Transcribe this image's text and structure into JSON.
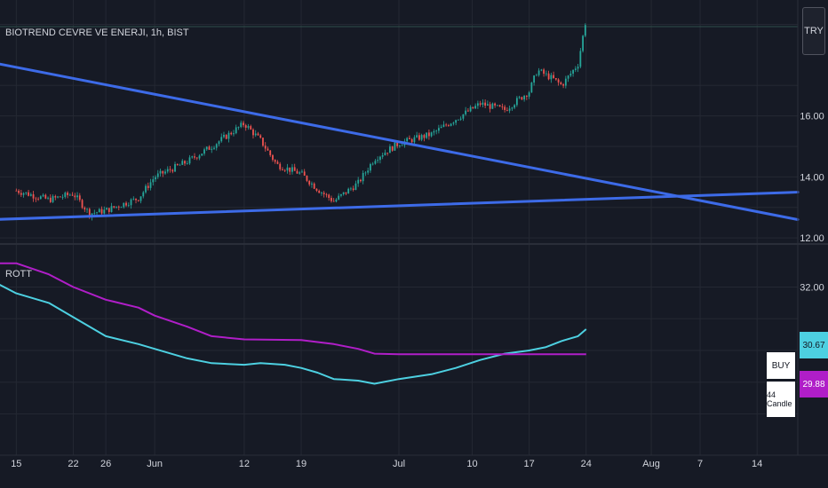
{
  "header": {
    "symbol_title": "BIOTREND CEVRE VE ENERJI, 1h, BIST",
    "currency": "TRY"
  },
  "indicator": {
    "name": "ROTT",
    "signal": "BUY",
    "candle_count": "44 Candle"
  },
  "colors": {
    "background": "#161a25",
    "grid": "#242833",
    "up_candle": "#26a69a",
    "down_candle": "#ef5350",
    "trendline": "#3d6be8",
    "indicator_cyan": "#4dd0e1",
    "indicator_magenta": "#b01ec8"
  },
  "chart_data": [
    {
      "type": "candlestick",
      "title": "BIOTREND CEVRE VE ENERJI, 1h, BIST",
      "price_axis": {
        "ticks": [
          "12.00",
          "14.00",
          "16.00"
        ],
        "range": [
          11.8,
          19.8
        ]
      },
      "x_ticks": [
        "15",
        "22",
        "26",
        "Jun",
        "12",
        "19",
        "Jul",
        "10",
        "17",
        "24",
        "Aug",
        "7",
        "14"
      ],
      "price_path": [
        {
          "date": "May 15",
          "price": 13.55
        },
        {
          "date": "May 19",
          "price": 13.25
        },
        {
          "date": "May 22",
          "price": 13.45
        },
        {
          "date": "May 24",
          "price": 12.8
        },
        {
          "date": "May 26",
          "price": 12.9
        },
        {
          "date": "May 30",
          "price": 13.3
        },
        {
          "date": "Jun 1",
          "price": 14.0
        },
        {
          "date": "Jun 5",
          "price": 14.5
        },
        {
          "date": "Jun 8",
          "price": 15.0
        },
        {
          "date": "Jun 12",
          "price": 15.75
        },
        {
          "date": "Jun 14",
          "price": 15.2
        },
        {
          "date": "Jun 16",
          "price": 14.4
        },
        {
          "date": "Jun 19",
          "price": 14.1
        },
        {
          "date": "Jun 21",
          "price": 13.6
        },
        {
          "date": "Jun 23",
          "price": 13.2
        },
        {
          "date": "Jun 26",
          "price": 13.8
        },
        {
          "date": "Jun 28",
          "price": 14.6
        },
        {
          "date": "Jul 1",
          "price": 15.1
        },
        {
          "date": "Jul 5",
          "price": 15.4
        },
        {
          "date": "Jul 8",
          "price": 15.9
        },
        {
          "date": "Jul 11",
          "price": 16.4
        },
        {
          "date": "Jul 14",
          "price": 16.2
        },
        {
          "date": "Jul 17",
          "price": 16.8
        },
        {
          "date": "Jul 18",
          "price": 17.5
        },
        {
          "date": "Jul 20",
          "price": 17.2
        },
        {
          "date": "Jul 21",
          "price": 17.0
        },
        {
          "date": "Jul 23",
          "price": 17.7
        },
        {
          "date": "Jul 24",
          "price": 19.2
        }
      ],
      "trendlines": [
        {
          "name": "descending",
          "start": {
            "date": "May 12",
            "price": 17.75
          },
          "end": {
            "date": "Aug 19",
            "price": 12.6
          }
        },
        {
          "name": "ascending",
          "start": {
            "date": "May 12",
            "price": 12.6
          },
          "end": {
            "date": "Aug 19",
            "price": 13.5
          }
        }
      ]
    },
    {
      "type": "line",
      "title": "ROTT",
      "y_ticks": [
        "32.00"
      ],
      "y_range": [
        26.7,
        33.3
      ],
      "last_values": [
        "30.67",
        "29.88"
      ],
      "series": [
        {
          "color": "#4dd0e1",
          "points": [
            {
              "date": "May 12",
              "value": 32.2
            },
            {
              "date": "May 15",
              "value": 31.8
            },
            {
              "date": "May 19",
              "value": 31.5
            },
            {
              "date": "May 22",
              "value": 31.05
            },
            {
              "date": "May 26",
              "value": 30.45
            },
            {
              "date": "May 30",
              "value": 30.2
            },
            {
              "date": "Jun 1",
              "value": 30.05
            },
            {
              "date": "Jun 5",
              "value": 29.75
            },
            {
              "date": "Jun 8",
              "value": 29.6
            },
            {
              "date": "Jun 12",
              "value": 29.55
            },
            {
              "date": "Jun 14",
              "value": 29.6
            },
            {
              "date": "Jun 17",
              "value": 29.55
            },
            {
              "date": "Jun 19",
              "value": 29.45
            },
            {
              "date": "Jun 21",
              "value": 29.3
            },
            {
              "date": "Jun 23",
              "value": 29.1
            },
            {
              "date": "Jun 26",
              "value": 29.05
            },
            {
              "date": "Jun 28",
              "value": 28.95
            },
            {
              "date": "Jul 1",
              "value": 29.1
            },
            {
              "date": "Jul 5",
              "value": 29.25
            },
            {
              "date": "Jul 8",
              "value": 29.45
            },
            {
              "date": "Jul 11",
              "value": 29.7
            },
            {
              "date": "Jul 14",
              "value": 29.9
            },
            {
              "date": "Jul 17",
              "value": 30.0
            },
            {
              "date": "Jul 19",
              "value": 30.1
            },
            {
              "date": "Jul 21",
              "value": 30.3
            },
            {
              "date": "Jul 23",
              "value": 30.45
            },
            {
              "date": "Jul 24",
              "value": 30.67
            }
          ]
        },
        {
          "color": "#b01ec8",
          "points": [
            {
              "date": "May 12",
              "value": 32.75
            },
            {
              "date": "May 15",
              "value": 32.75
            },
            {
              "date": "May 19",
              "value": 32.4
            },
            {
              "date": "May 22",
              "value": 32.0
            },
            {
              "date": "May 26",
              "value": 31.6
            },
            {
              "date": "May 30",
              "value": 31.35
            },
            {
              "date": "Jun 1",
              "value": 31.1
            },
            {
              "date": "Jun 5",
              "value": 30.75
            },
            {
              "date": "Jun 8",
              "value": 30.45
            },
            {
              "date": "Jun 12",
              "value": 30.35
            },
            {
              "date": "Jun 19",
              "value": 30.33
            },
            {
              "date": "Jun 23",
              "value": 30.2
            },
            {
              "date": "Jun 26",
              "value": 30.05
            },
            {
              "date": "Jun 28",
              "value": 29.9
            },
            {
              "date": "Jul 1",
              "value": 29.88
            },
            {
              "date": "Jul 24",
              "value": 29.88
            }
          ]
        }
      ]
    }
  ]
}
